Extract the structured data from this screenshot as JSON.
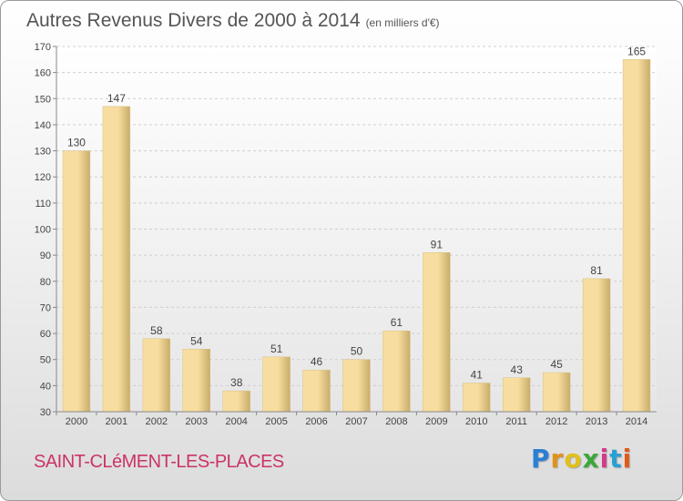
{
  "header": {
    "title": "Autres Revenus Divers de 2000 à 2014",
    "unit": "(en milliers d'€)"
  },
  "footer": {
    "commune": "SAINT-CLéMENT-LES-PLACES",
    "logo": "Proxiti"
  },
  "colors": {
    "bar_light": "#f7dea0",
    "bar_dark": "#c9ac6a",
    "grid": "#cfcfcf",
    "axis_text": "#444444",
    "commune": "#cc3366"
  },
  "chart_data": {
    "type": "bar",
    "title": "Autres Revenus Divers de 2000 à 2014",
    "subtitle": "(en milliers d'€)",
    "xlabel": "",
    "ylabel": "",
    "categories": [
      "2000",
      "2001",
      "2002",
      "2003",
      "2004",
      "2005",
      "2006",
      "2007",
      "2008",
      "2009",
      "2010",
      "2011",
      "2012",
      "2013",
      "2014"
    ],
    "values": [
      130,
      147,
      58,
      54,
      38,
      51,
      46,
      50,
      61,
      91,
      41,
      43,
      45,
      81,
      165
    ],
    "ylim": [
      30,
      170
    ],
    "yticks": [
      30,
      40,
      50,
      60,
      70,
      80,
      90,
      100,
      110,
      120,
      130,
      140,
      150,
      160,
      170
    ],
    "grid": true,
    "legend": "none",
    "data_labels": true
  }
}
